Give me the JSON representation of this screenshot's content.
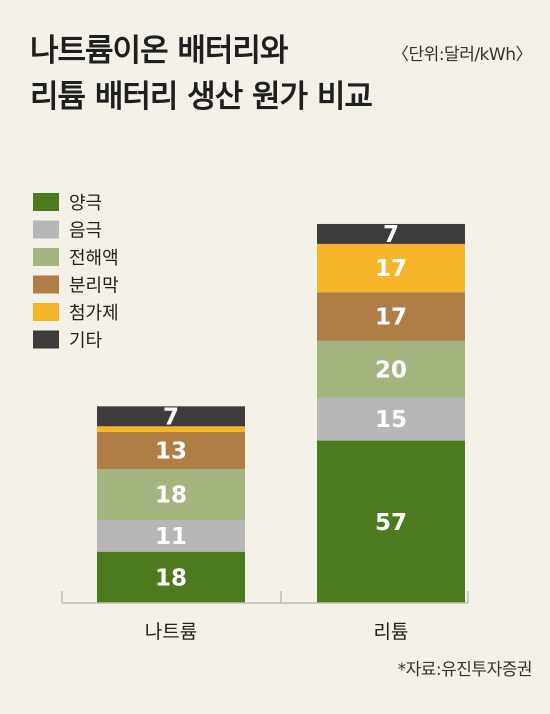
{
  "title": {
    "line1": "나트륨이온 배터리와",
    "line2": "리튬 배터리 생산 원가 비교"
  },
  "unit": "〈단위:달러/kWh〉",
  "source": "*자료:유진투자증권",
  "chart_data": {
    "type": "bar",
    "stacked": true,
    "categories": [
      "나트륨",
      "리튬"
    ],
    "series": [
      {
        "name": "양극",
        "color": "#4e7a1e",
        "values": [
          18,
          57
        ]
      },
      {
        "name": "음극",
        "color": "#b7b7b7",
        "values": [
          11,
          15
        ]
      },
      {
        "name": "전해액",
        "color": "#a3b47e",
        "values": [
          18,
          20
        ]
      },
      {
        "name": "분리막",
        "color": "#b07d47",
        "values": [
          13,
          17
        ]
      },
      {
        "name": "첨가제",
        "color": "#f6b62a",
        "values": [
          2,
          17
        ]
      },
      {
        "name": "기타",
        "color": "#3d3b3c",
        "values": [
          7,
          7
        ]
      }
    ],
    "data_labels": [
      [
        "18",
        "11",
        "18",
        "13",
        "",
        "7"
      ],
      [
        "57",
        "15",
        "20",
        "17",
        "17",
        "7"
      ]
    ],
    "legend_position": "top-left",
    "grid": false
  }
}
